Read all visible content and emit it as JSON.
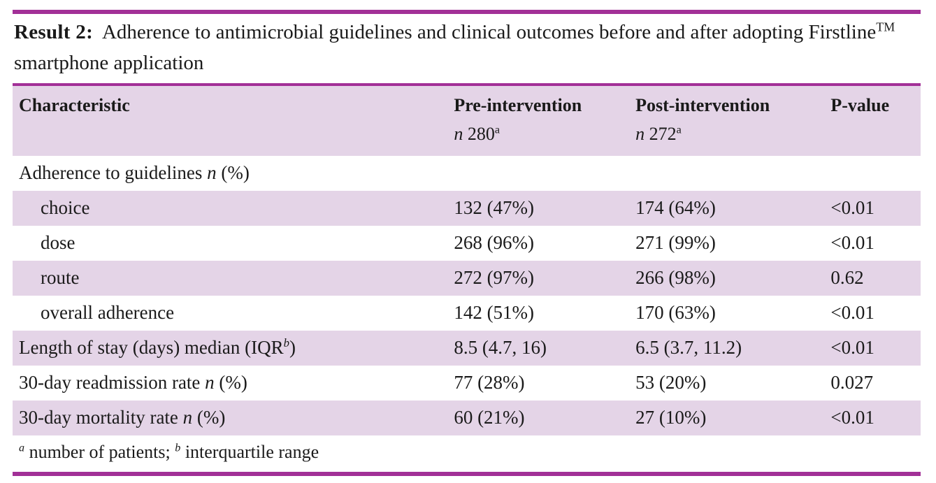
{
  "colors": {
    "accent": "#a23097",
    "row_shade": "#e4d4e7",
    "text": "#1a1a1a"
  },
  "title_html": "<b>Result 2:</b>&nbsp; Adherence to antimicrobial guidelines and clinical outcomes before and after adopting Firstline<sup>TM</sup> smartphone application",
  "table": {
    "columns": [
      {
        "label": "Characteristic",
        "sub_html": ""
      },
      {
        "label": "Pre-intervention",
        "sub_html": "<i>n</i> 280<sup>a</sup>"
      },
      {
        "label": "Post-intervention",
        "sub_html": "<i>n</i> 272<sup>a</sup>"
      },
      {
        "label": "P-value",
        "sub_html": ""
      }
    ],
    "rows": [
      {
        "label_html": "Adherence to guidelines <i>n</i> (%)",
        "indent": false,
        "shaded": false,
        "values": [
          "",
          "",
          ""
        ]
      },
      {
        "label_html": "choice",
        "indent": true,
        "shaded": true,
        "values": [
          "132 (47%)",
          "174 (64%)",
          "<0.01"
        ]
      },
      {
        "label_html": "dose",
        "indent": true,
        "shaded": false,
        "values": [
          "268 (96%)",
          "271 (99%)",
          "<0.01"
        ]
      },
      {
        "label_html": "route",
        "indent": true,
        "shaded": true,
        "values": [
          "272 (97%)",
          "266 (98%)",
          "0.62"
        ]
      },
      {
        "label_html": "overall adherence",
        "indent": true,
        "shaded": false,
        "values": [
          "142 (51%)",
          "170 (63%)",
          "<0.01"
        ]
      },
      {
        "label_html": "Length of stay (days) median (IQR<sup><i>b</i></sup>)",
        "indent": false,
        "shaded": true,
        "values": [
          "8.5 (4.7, 16)",
          "6.5 (3.7, 11.2)",
          "<0.01"
        ]
      },
      {
        "label_html": "30-day readmission rate <i>n</i> (%)",
        "indent": false,
        "shaded": false,
        "values": [
          "77 (28%)",
          "53 (20%)",
          "0.027"
        ]
      },
      {
        "label_html": "30-day mortality rate <i>n</i> (%)",
        "indent": false,
        "shaded": true,
        "values": [
          "60 (21%)",
          "27 (10%)",
          "<0.01"
        ]
      }
    ],
    "footnote_html": "<sup><i>a</i></sup> number of patients; <sup><i>b</i></sup> interquartile range"
  }
}
